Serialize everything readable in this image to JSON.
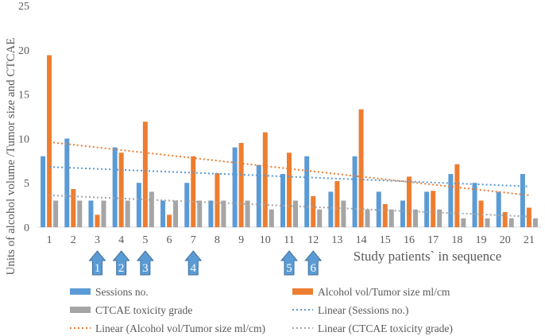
{
  "chart_data": {
    "type": "bar",
    "title": "",
    "ylabel": "Units of alcohol volume /Tumor size and CTCAE",
    "xlabel": "Study patients` in sequence",
    "ylim": [
      0,
      25
    ],
    "ytick_step": 5,
    "grid": false,
    "legend_position": "bottom",
    "categories": [
      "1",
      "2",
      "3",
      "4",
      "5",
      "6",
      "7",
      "8",
      "9",
      "10",
      "11",
      "12",
      "13",
      "14",
      "15",
      "16",
      "17",
      "18",
      "19",
      "20",
      "21"
    ],
    "series": [
      {
        "name": "Sessions no.",
        "color": "#5B9BD5",
        "values": [
          8,
          10,
          3,
          9,
          5,
          3,
          5,
          3,
          9,
          7,
          6,
          8,
          4,
          8,
          4,
          3,
          4,
          6,
          5,
          4,
          6
        ]
      },
      {
        "name": "Alcohol vol/Tumor size ml/cm",
        "color": "#ED7D31",
        "values": [
          19.4,
          4.3,
          1.4,
          8.4,
          11.9,
          1.4,
          8,
          6.1,
          9.5,
          10.7,
          8.4,
          3.5,
          5.2,
          13.3,
          2.6,
          5.7,
          4.1,
          7.1,
          3,
          1.7,
          2.2
        ]
      },
      {
        "name": "CTCAE toxicity grade",
        "color": "#A5A5A5",
        "values": [
          3,
          3,
          3,
          3,
          4,
          3,
          3,
          3,
          3,
          2,
          3,
          2,
          3,
          2,
          2,
          2,
          2,
          1,
          1,
          1,
          1
        ]
      }
    ],
    "trendlines": [
      {
        "name": "Linear (Sessions no.)",
        "color": "#5B9BD5",
        "series": "Sessions no.",
        "start": 6.8,
        "end": 4.6
      },
      {
        "name": "Linear (Alcohol vol/Tumor size ml/cm)",
        "color": "#ED7D31",
        "series": "Alcohol vol/Tumor size ml/cm",
        "start": 9.6,
        "end": 3.6
      },
      {
        "name": "Linear (CTCAE toxicity grade)",
        "color": "#A5A5A5",
        "series": "CTCAE toxicity grade",
        "start": 3.6,
        "end": 1.2
      }
    ],
    "annotations": [
      {
        "label": "1",
        "category": "3"
      },
      {
        "label": "2",
        "category": "4"
      },
      {
        "label": "3",
        "category": "5"
      },
      {
        "label": "4",
        "category": "7"
      },
      {
        "label": "5",
        "category": "11"
      },
      {
        "label": "6",
        "category": "12"
      }
    ],
    "annotation_color": "#5B9BD5"
  }
}
